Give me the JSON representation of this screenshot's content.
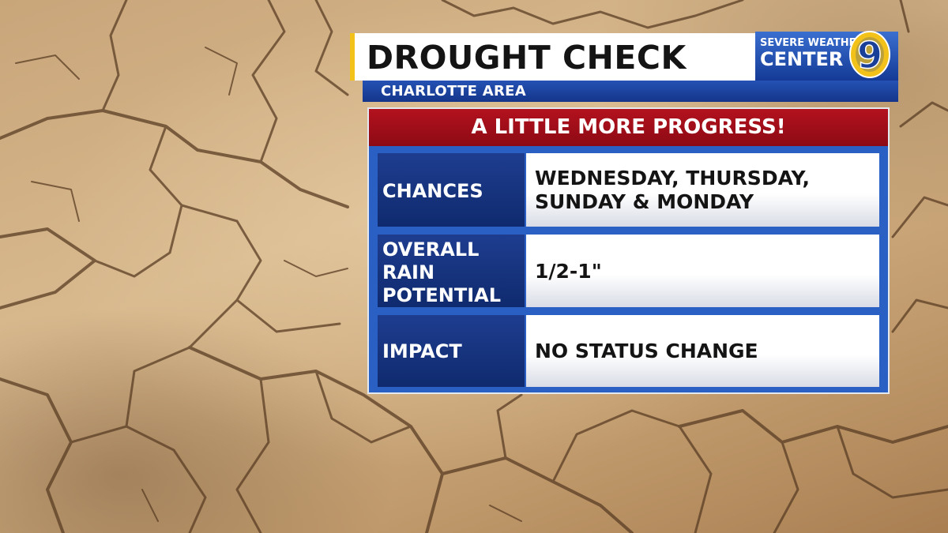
{
  "header": {
    "title": "DROUGHT CHECK",
    "subtitle": "CHARLOTTE AREA"
  },
  "logo": {
    "line1": "SEVERE WEATHER",
    "line2": "CENTER",
    "number": "9"
  },
  "card": {
    "headline": "A LITTLE MORE PROGRESS!",
    "rows": [
      {
        "label": "CHANCES",
        "value_line1": "WEDNESDAY, THURSDAY,",
        "value_line2": "SUNDAY & MONDAY"
      },
      {
        "label_line1": "OVERALL",
        "label_line2": "RAIN",
        "label_line3": "POTENTIAL",
        "value": "1/2-1\""
      },
      {
        "label": "IMPACT",
        "value": "NO STATUS CHANGE"
      }
    ]
  },
  "colors": {
    "headline_red": "#a00f1a",
    "label_navy": "#163585",
    "accent_yellow": "#f2c21b",
    "brand_blue": "#2a5fc4"
  }
}
